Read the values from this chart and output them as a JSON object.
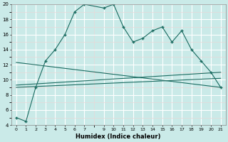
{
  "xlabel": "Humidex (Indice chaleur)",
  "bg_color": "#caeae8",
  "grid_color": "#ffffff",
  "grid_minor_color": "#e8d8d8",
  "line_color": "#1a6b60",
  "xlim": [
    -0.5,
    21.5
  ],
  "ylim": [
    4,
    20
  ],
  "xticks": [
    0,
    1,
    2,
    3,
    4,
    5,
    6,
    7,
    9,
    10,
    11,
    12,
    13,
    14,
    15,
    16,
    17,
    18,
    19,
    20,
    21
  ],
  "yticks": [
    4,
    6,
    8,
    10,
    12,
    14,
    16,
    18,
    20
  ],
  "series1_x": [
    0,
    1,
    2,
    3,
    4,
    5,
    6,
    7,
    9,
    10,
    11,
    12,
    13,
    14,
    15,
    16,
    17,
    18,
    19,
    20,
    21
  ],
  "series1_y": [
    5.0,
    4.5,
    9.0,
    12.5,
    14.0,
    16.0,
    19.0,
    20.0,
    19.5,
    20.0,
    17.0,
    15.0,
    15.5,
    16.5,
    17.0,
    15.0,
    16.5,
    14.0,
    12.5,
    11.0,
    9.0
  ],
  "series2_x": [
    0,
    21
  ],
  "series2_y": [
    12.3,
    9.0
  ],
  "series3_x": [
    0,
    21
  ],
  "series3_y": [
    9.0,
    10.2
  ],
  "series4_x": [
    0,
    21
  ],
  "series4_y": [
    9.3,
    11.0
  ]
}
